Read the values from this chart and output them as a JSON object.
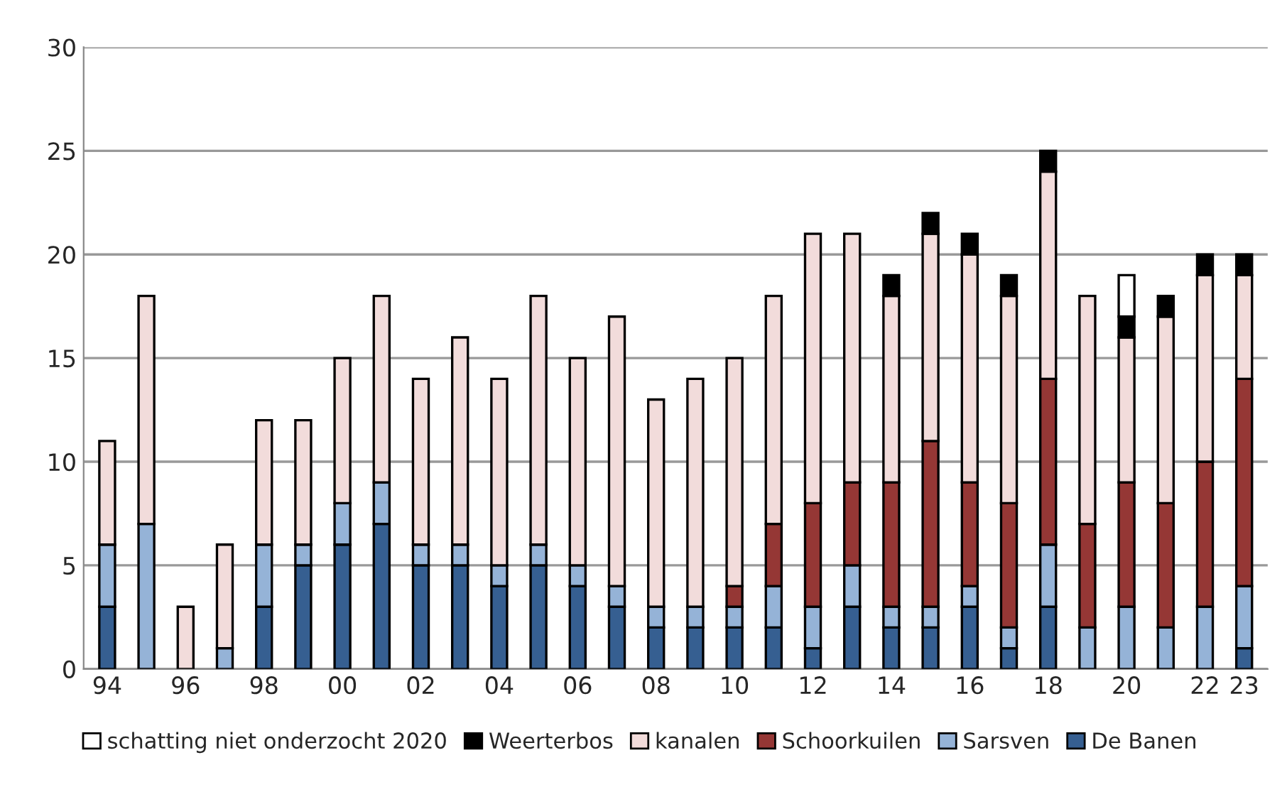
{
  "chart_data": {
    "type": "bar",
    "stacked": true,
    "categories": [
      "94",
      null,
      "96",
      null,
      "98",
      null,
      "00",
      null,
      "02",
      null,
      "04",
      null,
      "06",
      null,
      "08",
      null,
      "10",
      null,
      "12",
      null,
      "14",
      null,
      "16",
      null,
      "18",
      null,
      "20",
      null,
      "22",
      "23"
    ],
    "series": [
      {
        "name": "De Banen",
        "color": "#365f91",
        "values": [
          3,
          0,
          0,
          0,
          3,
          5,
          6,
          7,
          5,
          5,
          4,
          5,
          4,
          3,
          2,
          2,
          2,
          2,
          1,
          3,
          2,
          2,
          3,
          1,
          3,
          0,
          0,
          0,
          0,
          1
        ]
      },
      {
        "name": "Sarsven",
        "color": "#95b3d7",
        "values": [
          3,
          7,
          0,
          1,
          3,
          1,
          2,
          2,
          1,
          1,
          1,
          1,
          1,
          1,
          1,
          1,
          1,
          2,
          2,
          2,
          1,
          1,
          1,
          1,
          3,
          2,
          3,
          2,
          3,
          3
        ]
      },
      {
        "name": "Schoorkuilen",
        "color": "#953735",
        "values": [
          0,
          0,
          0,
          0,
          0,
          0,
          0,
          0,
          0,
          0,
          0,
          0,
          0,
          0,
          0,
          0,
          1,
          3,
          5,
          4,
          6,
          8,
          5,
          6,
          8,
          5,
          6,
          6,
          7,
          10
        ]
      },
      {
        "name": "kanalen",
        "color": "#f2dcdb",
        "values": [
          5,
          11,
          3,
          5,
          6,
          6,
          7,
          9,
          8,
          10,
          9,
          12,
          10,
          13,
          10,
          11,
          11,
          11,
          13,
          12,
          9,
          10,
          11,
          10,
          10,
          11,
          7,
          9,
          9,
          5
        ]
      },
      {
        "name": "Weerterbos",
        "color": "#000000",
        "values": [
          0,
          0,
          0,
          0,
          0,
          0,
          0,
          0,
          0,
          0,
          0,
          0,
          0,
          0,
          0,
          0,
          0,
          0,
          0,
          0,
          1,
          1,
          1,
          1,
          1,
          0,
          1,
          1,
          1,
          1
        ]
      },
      {
        "name": "schatting niet onderzocht 2020",
        "color": "#ffffff",
        "values": [
          0,
          0,
          0,
          0,
          0,
          0,
          0,
          0,
          0,
          0,
          0,
          0,
          0,
          0,
          0,
          0,
          0,
          0,
          0,
          0,
          0,
          0,
          0,
          0,
          0,
          0,
          2,
          0,
          0,
          0
        ]
      }
    ],
    "ylim": [
      0,
      30
    ],
    "yticks": [
      0,
      5,
      10,
      15,
      20,
      25,
      30
    ],
    "grid": "y",
    "legend": "bottom"
  }
}
